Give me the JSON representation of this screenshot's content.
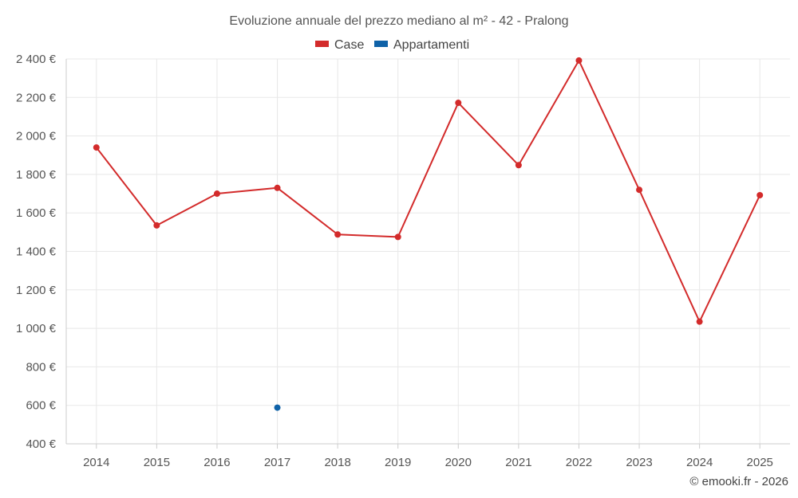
{
  "chart_data": {
    "type": "line",
    "title": "Evoluzione annuale del prezzo mediano al m² - 42 - Pralong",
    "categories": [
      "2014",
      "2015",
      "2016",
      "2017",
      "2018",
      "2019",
      "2020",
      "2021",
      "2022",
      "2023",
      "2024",
      "2025"
    ],
    "series": [
      {
        "name": "Case",
        "color": "#d32b2b",
        "values": [
          1940,
          1535,
          1700,
          1730,
          1488,
          1475,
          2172,
          1848,
          2392,
          1720,
          1035,
          1692
        ]
      },
      {
        "name": "Appartamenti",
        "color": "#0f62a8",
        "values": [
          null,
          null,
          null,
          588,
          null,
          null,
          null,
          null,
          null,
          null,
          null,
          null
        ]
      }
    ],
    "y_ticks": [
      "400 €",
      "600 €",
      "800 €",
      "1 000 €",
      "1 200 €",
      "1 400 €",
      "1 600 €",
      "1 800 €",
      "2 000 €",
      "2 200 €",
      "2 400 €"
    ],
    "ylim": [
      400,
      2400
    ],
    "grid": true,
    "legend_position": "top-center"
  },
  "credit": "© emooki.fr - 2026"
}
